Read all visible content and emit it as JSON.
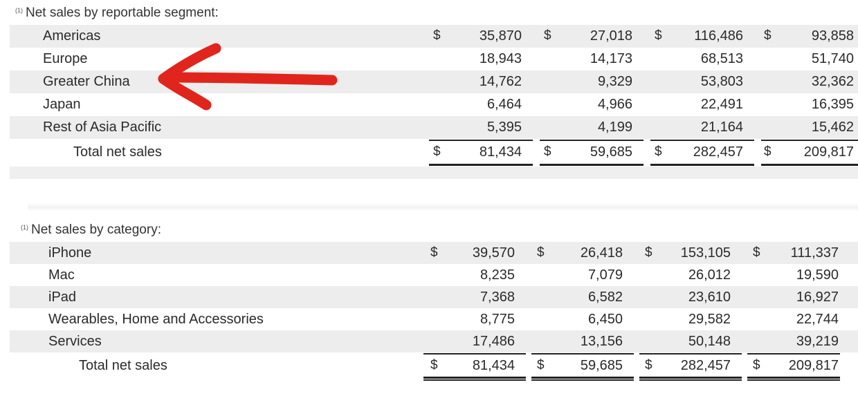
{
  "segment_table": {
    "heading_marker": "(1)",
    "heading": "Net sales by reportable segment:",
    "rows": [
      {
        "label": "Americas",
        "c1": "35,870",
        "c2": "27,018",
        "c3": "116,486",
        "c4": "93,858",
        "dollars": true
      },
      {
        "label": "Europe",
        "c1": "18,943",
        "c2": "14,173",
        "c3": "68,513",
        "c4": "51,740",
        "dollars": false
      },
      {
        "label": "Greater China",
        "c1": "14,762",
        "c2": "9,329",
        "c3": "53,803",
        "c4": "32,362",
        "dollars": false
      },
      {
        "label": "Japan",
        "c1": "6,464",
        "c2": "4,966",
        "c3": "22,491",
        "c4": "16,395",
        "dollars": false
      },
      {
        "label": "Rest of Asia Pacific",
        "c1": "5,395",
        "c2": "4,199",
        "c3": "21,164",
        "c4": "15,462",
        "dollars": false
      }
    ],
    "total": {
      "label": "Total net sales",
      "c1": "81,434",
      "c2": "59,685",
      "c3": "282,457",
      "c4": "209,817"
    },
    "currency_symbol": "$"
  },
  "category_table": {
    "heading_marker": "(1)",
    "heading": "Net sales by category:",
    "rows": [
      {
        "label": "iPhone",
        "c1": "39,570",
        "c2": "26,418",
        "c3": "153,105",
        "c4": "111,337",
        "dollars": true
      },
      {
        "label": "Mac",
        "c1": "8,235",
        "c2": "7,079",
        "c3": "26,012",
        "c4": "19,590",
        "dollars": false
      },
      {
        "label": "iPad",
        "c1": "7,368",
        "c2": "6,582",
        "c3": "23,610",
        "c4": "16,927",
        "dollars": false
      },
      {
        "label": "Wearables, Home and Accessories",
        "c1": "8,775",
        "c2": "6,450",
        "c3": "29,582",
        "c4": "22,744",
        "dollars": false
      },
      {
        "label": "Services",
        "c1": "17,486",
        "c2": "13,156",
        "c3": "50,148",
        "c4": "39,219",
        "dollars": false
      }
    ],
    "total": {
      "label": "Total net sales",
      "c1": "81,434",
      "c2": "59,685",
      "c3": "282,457",
      "c4": "209,817"
    },
    "currency_symbol": "$"
  },
  "annotation": {
    "arrow_color": "#e0261c",
    "points_to": "Greater China"
  }
}
